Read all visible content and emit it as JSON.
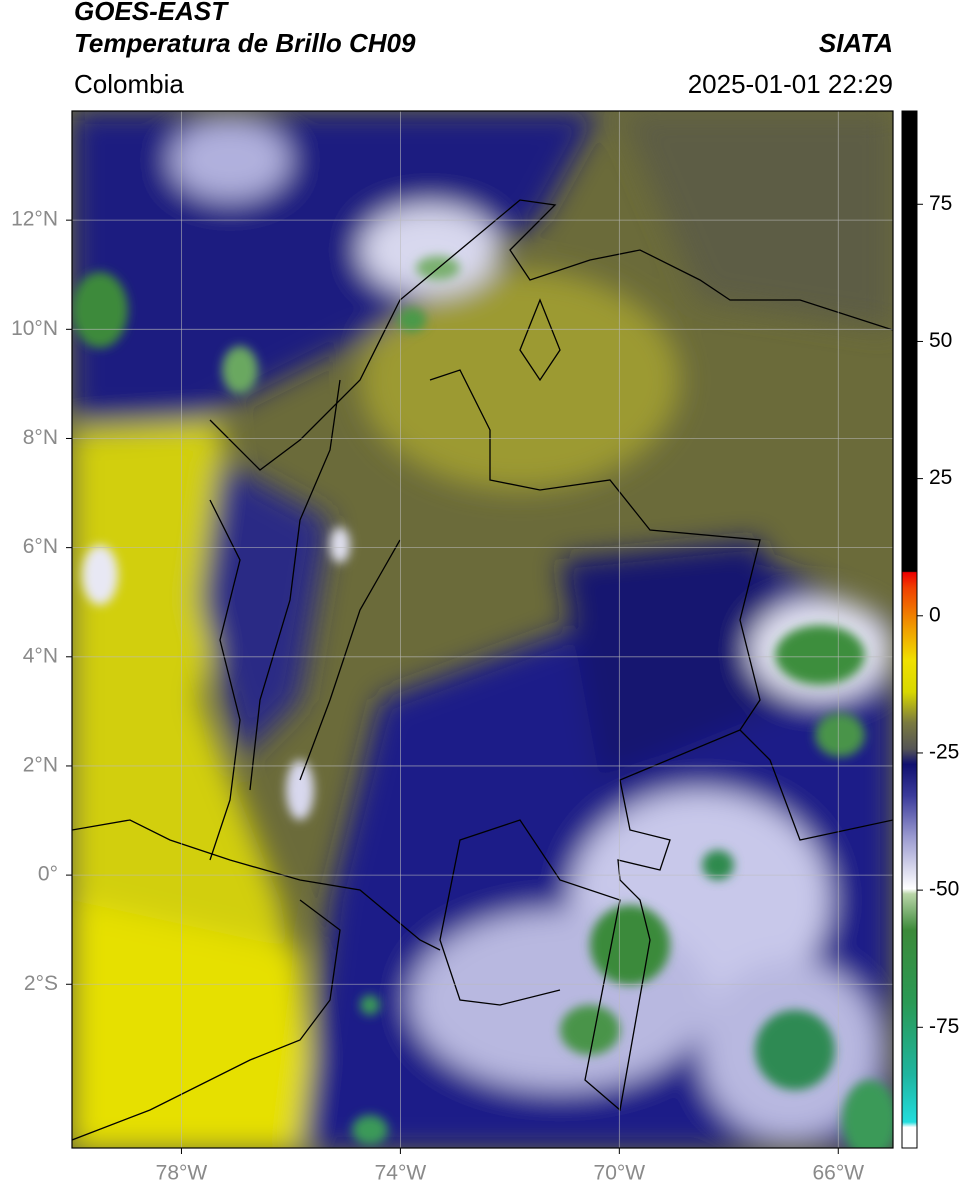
{
  "header": {
    "title": "GOES-EAST",
    "subtitle": "Temperatura de Brillo CH09",
    "source": "SIATA",
    "region": "Colombia",
    "datetime": "2025-01-01 22:29"
  },
  "map": {
    "xlim": [
      -80,
      -65
    ],
    "ylim": [
      -5,
      14
    ],
    "xticks": [
      {
        "value": -78,
        "label": "78°W"
      },
      {
        "value": -74,
        "label": "74°W"
      },
      {
        "value": -70,
        "label": "70°W"
      },
      {
        "value": -66,
        "label": "66°W"
      }
    ],
    "yticks": [
      {
        "value": 12,
        "label": "12°N"
      },
      {
        "value": 10,
        "label": "10°N"
      },
      {
        "value": 8,
        "label": "8°N"
      },
      {
        "value": 6,
        "label": "6°N"
      },
      {
        "value": 4,
        "label": "4°N"
      },
      {
        "value": 2,
        "label": "2°N"
      },
      {
        "value": 0,
        "label": "0°"
      },
      {
        "value": -2,
        "label": "2°S"
      }
    ],
    "grid": true
  },
  "colorbar": {
    "lim": [
      -97,
      92
    ],
    "ticks": [
      75,
      50,
      25,
      0,
      -25,
      -50,
      -75
    ]
  }
}
